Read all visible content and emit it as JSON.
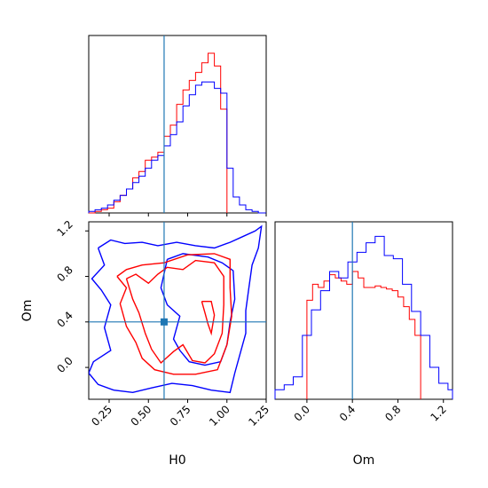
{
  "chart_data": [
    {
      "type": "histogram",
      "panel": "H0 marginal",
      "xlim": [
        0.12,
        1.25
      ],
      "truth": 0.6,
      "series": [
        {
          "color": "#ff0000",
          "bins_x": [
            0.12,
            0.16,
            0.2,
            0.24,
            0.28,
            0.32,
            0.36,
            0.4,
            0.44,
            0.48,
            0.52,
            0.56,
            0.6,
            0.64,
            0.68,
            0.72,
            0.76,
            0.8,
            0.84,
            0.88,
            0.92,
            0.96,
            1.0
          ],
          "counts": [
            0.0,
            0.01,
            0.02,
            0.03,
            0.07,
            0.11,
            0.15,
            0.22,
            0.26,
            0.33,
            0.35,
            0.38,
            0.48,
            0.55,
            0.68,
            0.77,
            0.83,
            0.88,
            0.94,
            1.0,
            0.92,
            0.65
          ]
        },
        {
          "color": "#0000ff",
          "bins_x": [
            0.12,
            0.16,
            0.2,
            0.24,
            0.28,
            0.32,
            0.36,
            0.4,
            0.44,
            0.48,
            0.52,
            0.56,
            0.6,
            0.64,
            0.68,
            0.72,
            0.76,
            0.8,
            0.84,
            0.88,
            0.92,
            0.96,
            1.0,
            1.04,
            1.08,
            1.12,
            1.16,
            1.2,
            1.25
          ],
          "counts": [
            0.01,
            0.02,
            0.03,
            0.05,
            0.08,
            0.11,
            0.15,
            0.19,
            0.23,
            0.28,
            0.33,
            0.36,
            0.42,
            0.49,
            0.57,
            0.67,
            0.74,
            0.8,
            0.82,
            0.82,
            0.78,
            0.75,
            0.28,
            0.1,
            0.05,
            0.02,
            0.01,
            0.0
          ]
        }
      ]
    },
    {
      "type": "contour",
      "panel": "H0 vs Om",
      "xlabel": "H0",
      "ylabel": "Om",
      "xlim": [
        0.12,
        1.25
      ],
      "ylim": [
        -0.28,
        1.28
      ],
      "xticks": [
        "0.25",
        "0.50",
        "0.75",
        "1.00",
        "1.25"
      ],
      "yticks": [
        "0.0",
        "0.4",
        "0.8",
        "1.2"
      ],
      "truth": [
        0.6,
        0.4
      ],
      "series": [
        {
          "color": "#0000ff",
          "contours": [
            [
              [
                0.18,
                1.05
              ],
              [
                0.26,
                1.12
              ],
              [
                0.35,
                1.09
              ],
              [
                0.46,
                1.1
              ],
              [
                0.56,
                1.07
              ],
              [
                0.68,
                1.1
              ],
              [
                0.8,
                1.07
              ],
              [
                0.92,
                1.05
              ],
              [
                1.02,
                1.1
              ],
              [
                1.1,
                1.15
              ],
              [
                1.18,
                1.2
              ],
              [
                1.22,
                1.24
              ],
              [
                1.2,
                1.05
              ],
              [
                1.16,
                0.9
              ],
              [
                1.14,
                0.7
              ],
              [
                1.12,
                0.5
              ],
              [
                1.12,
                0.3
              ],
              [
                1.08,
                0.1
              ],
              [
                1.05,
                -0.05
              ],
              [
                1.02,
                -0.22
              ],
              [
                0.9,
                -0.2
              ],
              [
                0.78,
                -0.16
              ],
              [
                0.65,
                -0.14
              ],
              [
                0.52,
                -0.18
              ],
              [
                0.4,
                -0.22
              ],
              [
                0.28,
                -0.2
              ],
              [
                0.18,
                -0.15
              ],
              [
                0.12,
                -0.05
              ],
              [
                0.15,
                0.05
              ],
              [
                0.26,
                0.15
              ],
              [
                0.22,
                0.35
              ],
              [
                0.26,
                0.55
              ],
              [
                0.2,
                0.68
              ],
              [
                0.14,
                0.78
              ],
              [
                0.22,
                0.9
              ],
              [
                0.18,
                1.05
              ]
            ],
            [
              [
                0.62,
                0.95
              ],
              [
                0.72,
                1.0
              ],
              [
                0.88,
                0.97
              ],
              [
                0.97,
                0.92
              ],
              [
                1.04,
                0.85
              ],
              [
                1.05,
                0.6
              ],
              [
                1.02,
                0.4
              ],
              [
                1.0,
                0.2
              ],
              [
                0.96,
                0.05
              ],
              [
                0.86,
                0.02
              ],
              [
                0.76,
                0.05
              ],
              [
                0.7,
                0.15
              ],
              [
                0.66,
                0.25
              ],
              [
                0.7,
                0.45
              ],
              [
                0.62,
                0.55
              ],
              [
                0.58,
                0.7
              ],
              [
                0.62,
                0.95
              ]
            ]
          ]
        },
        {
          "color": "#ff0000",
          "contours": [
            [
              [
                0.3,
                0.8
              ],
              [
                0.36,
                0.86
              ],
              [
                0.46,
                0.9
              ],
              [
                0.6,
                0.92
              ],
              [
                0.75,
                0.99
              ],
              [
                0.92,
                1.0
              ],
              [
                1.02,
                0.95
              ],
              [
                1.02,
                0.7
              ],
              [
                1.03,
                0.45
              ],
              [
                1.0,
                0.2
              ],
              [
                0.94,
                -0.02
              ],
              [
                0.8,
                -0.06
              ],
              [
                0.66,
                -0.06
              ],
              [
                0.54,
                -0.02
              ],
              [
                0.46,
                0.08
              ],
              [
                0.42,
                0.22
              ],
              [
                0.36,
                0.36
              ],
              [
                0.32,
                0.56
              ],
              [
                0.36,
                0.7
              ],
              [
                0.3,
                0.8
              ]
            ],
            [
              [
                0.36,
                0.78
              ],
              [
                0.42,
                0.82
              ],
              [
                0.5,
                0.74
              ],
              [
                0.56,
                0.82
              ],
              [
                0.62,
                0.88
              ],
              [
                0.72,
                0.86
              ],
              [
                0.8,
                0.94
              ],
              [
                0.92,
                0.92
              ],
              [
                0.98,
                0.8
              ],
              [
                0.98,
                0.55
              ],
              [
                0.97,
                0.3
              ],
              [
                0.92,
                0.12
              ],
              [
                0.86,
                0.04
              ],
              [
                0.78,
                0.06
              ],
              [
                0.72,
                0.2
              ],
              [
                0.66,
                0.14
              ],
              [
                0.58,
                0.04
              ],
              [
                0.52,
                0.16
              ],
              [
                0.48,
                0.3
              ],
              [
                0.44,
                0.48
              ],
              [
                0.4,
                0.6
              ],
              [
                0.36,
                0.78
              ]
            ],
            [
              [
                0.84,
                0.58
              ],
              [
                0.86,
                0.48
              ],
              [
                0.88,
                0.38
              ],
              [
                0.9,
                0.3
              ],
              [
                0.92,
                0.46
              ],
              [
                0.9,
                0.58
              ],
              [
                0.84,
                0.58
              ]
            ]
          ]
        }
      ]
    },
    {
      "type": "histogram",
      "panel": "Om marginal",
      "xlabel": "Om",
      "xlim": [
        -0.28,
        1.28
      ],
      "xticks": [
        "0.0",
        "0.4",
        "0.8",
        "1.2"
      ],
      "truth": 0.4,
      "series": [
        {
          "color": "#ff0000",
          "bins_x": [
            0.0,
            0.05,
            0.1,
            0.15,
            0.2,
            0.25,
            0.3,
            0.35,
            0.4,
            0.45,
            0.5,
            0.55,
            0.6,
            0.65,
            0.7,
            0.75,
            0.8,
            0.85,
            0.9,
            0.95,
            1.0
          ],
          "counts": [
            0.62,
            0.72,
            0.7,
            0.74,
            0.78,
            0.76,
            0.74,
            0.72,
            0.8,
            0.76,
            0.7,
            0.7,
            0.71,
            0.7,
            0.69,
            0.68,
            0.64,
            0.58,
            0.5,
            0.4
          ]
        },
        {
          "color": "#0000ff",
          "bins_x": [
            -0.28,
            -0.2,
            -0.12,
            -0.04,
            0.04,
            0.12,
            0.2,
            0.28,
            0.36,
            0.44,
            0.52,
            0.6,
            0.68,
            0.76,
            0.84,
            0.92,
            1.0,
            1.08,
            1.16,
            1.24,
            1.28
          ],
          "counts": [
            0.06,
            0.09,
            0.14,
            0.4,
            0.56,
            0.68,
            0.8,
            0.76,
            0.86,
            0.92,
            0.98,
            1.02,
            0.9,
            0.88,
            0.72,
            0.55,
            0.4,
            0.2,
            0.1,
            0.06
          ]
        }
      ]
    }
  ]
}
